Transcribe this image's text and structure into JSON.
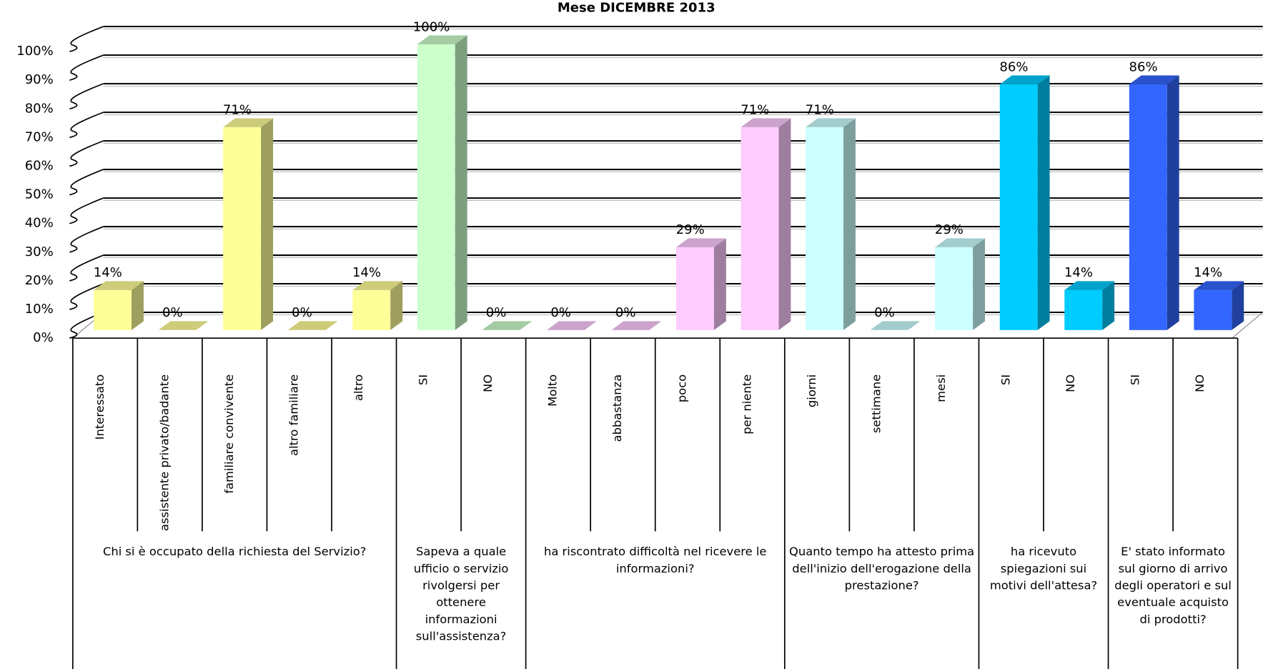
{
  "chart_data": {
    "type": "bar3d",
    "title": "Mese  DICEMBRE 2013",
    "ylim": [
      0,
      100
    ],
    "yticks": [
      {
        "value": 0,
        "label": "0%"
      },
      {
        "value": 10,
        "label": "10%"
      },
      {
        "value": 20,
        "label": "20%"
      },
      {
        "value": 30,
        "label": "30%"
      },
      {
        "value": 40,
        "label": "40%"
      },
      {
        "value": 50,
        "label": "50%"
      },
      {
        "value": 60,
        "label": "60%"
      },
      {
        "value": 70,
        "label": "70%"
      },
      {
        "value": 80,
        "label": "80%"
      },
      {
        "value": 90,
        "label": "90%"
      },
      {
        "value": 100,
        "label": "100%"
      }
    ],
    "grid": true,
    "groups": [
      {
        "label": "Chi si è occupato della richiesta del Servizio?",
        "color": "#ffff99",
        "categories": [
          "Interessato",
          "assistente privato/badante",
          "familiare convivente",
          "altro familiare",
          "altro"
        ],
        "values": [
          14,
          0,
          71,
          0,
          14
        ],
        "value_labels": [
          "14%",
          "0%",
          "71%",
          "0%",
          "14%"
        ]
      },
      {
        "label": "Sapeva a quale ufficio o servizio rivolgersi per ottenere informazioni sull'assistenza?",
        "color": "#ccffcc",
        "categories": [
          "SI",
          "NO"
        ],
        "values": [
          100,
          0
        ],
        "value_labels": [
          "100%",
          "0%"
        ]
      },
      {
        "label": "ha riscontrato difficoltà nel ricevere le informazioni?",
        "color": "#ffccff",
        "categories": [
          "Molto",
          "abbastanza",
          "poco",
          "per niente"
        ],
        "values": [
          0,
          0,
          29,
          71
        ],
        "value_labels": [
          "0%",
          "0%",
          "29%",
          "71%"
        ]
      },
      {
        "label": "Quanto tempo ha attesto prima dell'inizio dell'erogazione della prestazione?",
        "color": "#ccffff",
        "categories": [
          "giorni",
          "settimane",
          "mesi"
        ],
        "values": [
          71,
          0,
          29
        ],
        "value_labels": [
          "71%",
          "0%",
          "29%"
        ]
      },
      {
        "label": "ha ricevuto spiegazioni sui motivi dell'attesa?",
        "color": "#00ccff",
        "categories": [
          "SI",
          "NO"
        ],
        "values": [
          86,
          14
        ],
        "value_labels": [
          "86%",
          "14%"
        ]
      },
      {
        "label": "E' stato informato sul giorno di arrivo degli operatori e sul eventuale acquisto di prodotti?",
        "color": "#3366ff",
        "categories": [
          "SI",
          "NO"
        ],
        "values": [
          86,
          14
        ],
        "value_labels": [
          "86%",
          "14%"
        ]
      }
    ]
  }
}
